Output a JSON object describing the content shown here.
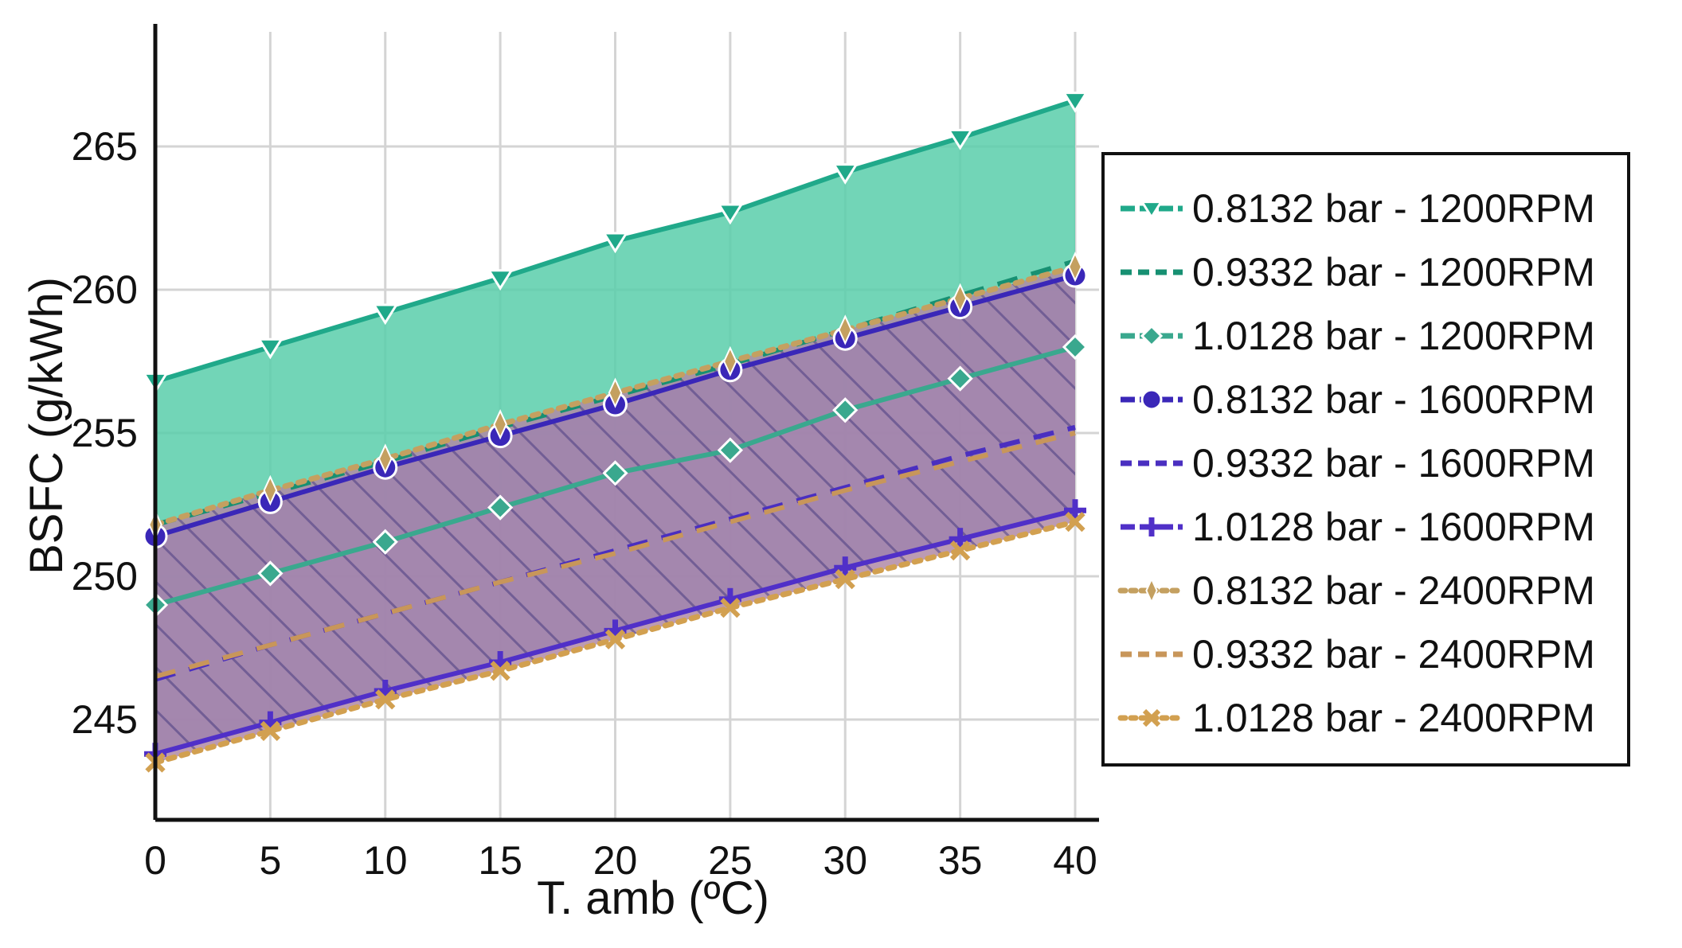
{
  "chart_data": {
    "type": "line",
    "title": "",
    "xlabel": "T. amb (ºC)",
    "ylabel": "BSFC (g/kWh)",
    "x": [
      0,
      5,
      10,
      15,
      20,
      25,
      30,
      35,
      40
    ],
    "xlim": [
      0,
      41
    ],
    "ylim": [
      241.5,
      269
    ],
    "xticks": [
      "0",
      "5",
      "10",
      "15",
      "20",
      "25",
      "30",
      "35",
      "40"
    ],
    "yticks": [
      {
        "value": 245,
        "label": "245"
      },
      {
        "value": 250,
        "label": "250"
      },
      {
        "value": 255,
        "label": "255"
      },
      {
        "value": 260,
        "label": "260"
      },
      {
        "value": 265,
        "label": "265"
      }
    ],
    "grid": true,
    "legend_position": "right",
    "series": [
      {
        "name": "0.8132 bar - 1200RPM",
        "color": "#20a98a",
        "dash": "solid",
        "marker": "triangle-down",
        "values": [
          256.8,
          258.0,
          259.2,
          260.4,
          261.7,
          262.7,
          264.1,
          265.3,
          266.6
        ]
      },
      {
        "name": "0.9332 bar - 1200RPM",
        "color": "#179072",
        "dash": "dash",
        "marker": "none",
        "values": [
          251.8,
          252.9,
          254.0,
          255.2,
          256.3,
          257.4,
          258.6,
          259.8,
          261.0
        ]
      },
      {
        "name": "1.0128 bar - 1200RPM",
        "color": "#3aa88e",
        "dash": "solid",
        "marker": "diamond",
        "values": [
          249.0,
          250.1,
          251.2,
          252.4,
          253.6,
          254.4,
          255.8,
          256.9,
          258.0
        ]
      },
      {
        "name": "0.8132 bar - 1600RPM",
        "color": "#3a27b8",
        "dash": "solid",
        "marker": "circle",
        "values": [
          251.4,
          252.6,
          253.8,
          254.9,
          256.0,
          257.2,
          258.3,
          259.4,
          260.5
        ]
      },
      {
        "name": "0.9332 bar - 1600RPM",
        "color": "#4a2fc0",
        "dash": "dash",
        "marker": "none",
        "values": [
          246.4,
          247.6,
          248.7,
          249.8,
          250.9,
          252.0,
          253.1,
          254.2,
          255.2
        ]
      },
      {
        "name": "1.0128 bar - 1600RPM",
        "color": "#5030c8",
        "dash": "solid",
        "marker": "plus",
        "values": [
          243.8,
          244.9,
          246.0,
          247.0,
          248.1,
          249.2,
          250.3,
          251.3,
          252.3
        ]
      },
      {
        "name": "0.8132 bar - 2400RPM",
        "color": "#c4a060",
        "dash": "dot",
        "marker": "thin-diamond",
        "values": [
          251.8,
          253.0,
          254.1,
          255.3,
          256.4,
          257.5,
          258.6,
          259.7,
          260.8
        ]
      },
      {
        "name": "0.9332 bar - 2400RPM",
        "color": "#c8965a",
        "dash": "dash",
        "marker": "none",
        "values": [
          246.5,
          247.6,
          248.7,
          249.8,
          250.8,
          251.9,
          253.0,
          254.0,
          255.0
        ]
      },
      {
        "name": "1.0128 bar - 2400RPM",
        "color": "#d2a050",
        "dash": "dot",
        "marker": "x",
        "values": [
          243.5,
          244.6,
          245.7,
          246.7,
          247.8,
          248.9,
          249.9,
          250.9,
          251.9
        ]
      }
    ],
    "bands": [
      {
        "name": "1200RPM band",
        "upper_series": 0,
        "lower_series": 2,
        "color": "#59ceaa",
        "pattern": "none"
      },
      {
        "name": "1600RPM band",
        "upper_series": 3,
        "lower_series": 5,
        "color": "#4262d6",
        "pattern": "hatch"
      },
      {
        "name": "2400RPM band",
        "upper_series": 6,
        "lower_series": 8,
        "color": "#b08aa6",
        "pattern": "hatch"
      }
    ]
  }
}
